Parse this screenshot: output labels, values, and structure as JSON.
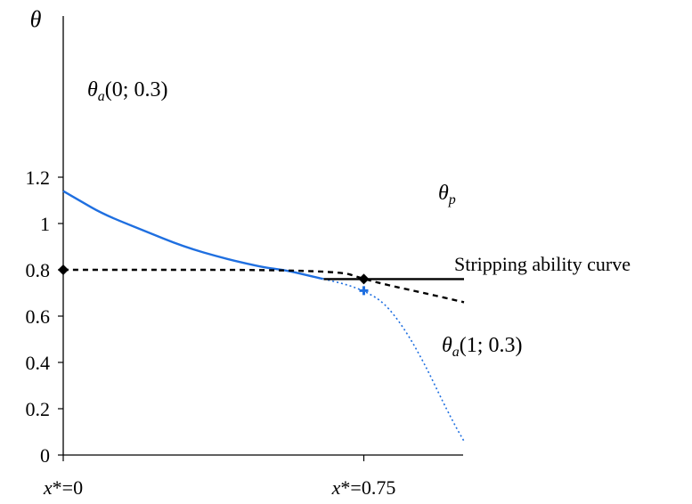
{
  "chart_data": {
    "type": "line",
    "ylabel": "θ",
    "ylim": [
      0,
      1.4
    ],
    "y_ticks": [
      {
        "value": 0,
        "label": "0"
      },
      {
        "value": 0.2,
        "label": "0.2"
      },
      {
        "value": 0.4,
        "label": "0.4"
      },
      {
        "value": 0.6,
        "label": "0.6"
      },
      {
        "value": 0.8,
        "label": "0.8"
      },
      {
        "value": 1.0,
        "label": "1"
      },
      {
        "value": 1.2,
        "label": "1.2"
      }
    ],
    "xlim": [
      0,
      1
    ],
    "x_ticks": [
      {
        "value": 0,
        "prefix": "x",
        "suffix": "*=0"
      },
      {
        "value": 0.75,
        "prefix": "x",
        "suffix": "*=0.75"
      }
    ],
    "series": [
      {
        "label_main": "θ",
        "label_sub": "a",
        "label_rest": "(0; 0.3)",
        "color": "#1f6fe0",
        "style": "solid",
        "x": [
          0,
          0.04,
          0.1,
          0.2,
          0.3,
          0.4,
          0.5,
          0.55,
          0.6,
          0.65
        ],
        "y": [
          1.14,
          1.1,
          1.04,
          0.97,
          0.9,
          0.85,
          0.81,
          0.8,
          0.78,
          0.76
        ]
      },
      {
        "label_main": "θ",
        "label_sub": "a",
        "label_rest": "(1; 0.3)",
        "color": "#1f6fe0",
        "style": "dotted",
        "x": [
          0.65,
          0.7,
          0.75,
          0.8,
          0.85,
          0.9,
          0.95,
          0.98,
          1.0
        ],
        "y": [
          0.76,
          0.74,
          0.71,
          0.66,
          0.55,
          0.4,
          0.22,
          0.12,
          0.06
        ]
      },
      {
        "label_main": "θ",
        "label_sub": "p",
        "color": "#000000",
        "style": "solid",
        "x": [
          0.65,
          1.0
        ],
        "y": [
          0.76,
          0.76
        ]
      },
      {
        "label_text": "Stripping ability curve",
        "color": "#000000",
        "style": "dashed",
        "x": [
          0,
          0.68,
          0.75,
          0.82,
          0.9,
          1.0
        ],
        "y": [
          0.8,
          0.8,
          0.76,
          0.73,
          0.7,
          0.66
        ]
      }
    ],
    "markers": [
      {
        "shape": "diamond",
        "color": "#000000",
        "x": 0,
        "y": 0.8
      },
      {
        "shape": "diamond",
        "color": "#000000",
        "x": 0.75,
        "y": 0.76
      },
      {
        "shape": "cross",
        "color": "#1f6fe0",
        "x": 0.75,
        "y": 0.71
      }
    ]
  }
}
